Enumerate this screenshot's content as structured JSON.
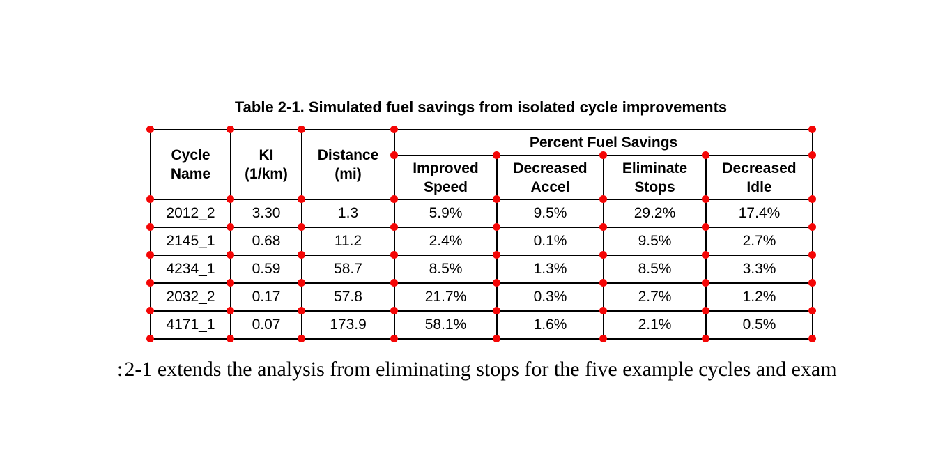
{
  "caption": "Table 2-1. Simulated fuel savings from isolated cycle improvements",
  "table": {
    "column_headers": [
      "Cycle\nName",
      "KI\n(1/km)",
      "Distance\n(mi)"
    ],
    "group_header": "Percent Fuel Savings",
    "sub_headers": [
      "Improved\nSpeed",
      "Decreased\nAccel",
      "Eliminate\nStops",
      "Decreased\nIdle"
    ],
    "rows": [
      [
        "2012_2",
        "3.30",
        "1.3",
        "5.9%",
        "9.5%",
        "29.2%",
        "17.4%"
      ],
      [
        "2145_1",
        "0.68",
        "11.2",
        "2.4%",
        "0.1%",
        "9.5%",
        "2.7%"
      ],
      [
        "4234_1",
        "0.59",
        "58.7",
        "8.5%",
        "1.3%",
        "8.5%",
        "3.3%"
      ],
      [
        "2032_2",
        "0.17",
        "57.8",
        "21.7%",
        "0.3%",
        "2.7%",
        "1.2%"
      ],
      [
        "4171_1",
        "0.07",
        "173.9",
        "58.1%",
        "1.6%",
        "2.1%",
        "0.5%"
      ]
    ]
  },
  "body_text": {
    "fragment": ":",
    "text": "2-1 extends the analysis from eliminating stops for the five example cycles and exam"
  },
  "annotation": {
    "marker_color": "#f40606"
  }
}
